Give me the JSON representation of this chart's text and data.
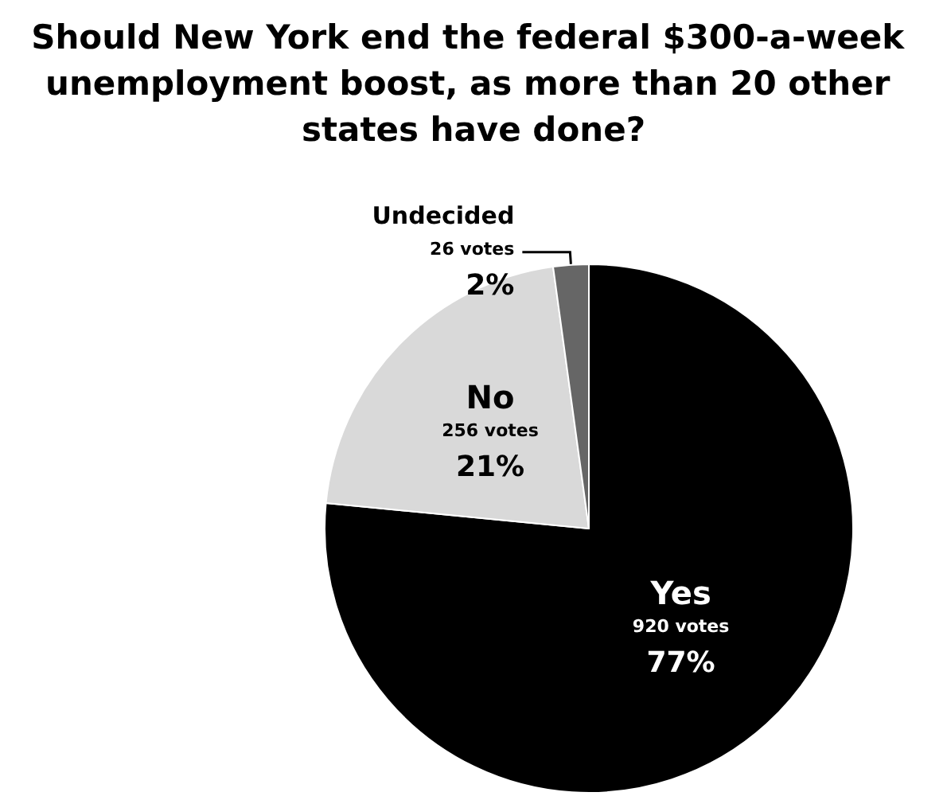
{
  "chart_data": {
    "type": "pie",
    "title": "Should New York end the federal $300-a-week unemployment boost, as more than 20 other states have done?",
    "categories": [
      "Yes",
      "No",
      "Undecided"
    ],
    "values": [
      920,
      256,
      26
    ],
    "value_labels": [
      "920 votes\n77%",
      "256 votes\n21%",
      "26 votes\n2%"
    ],
    "colors": [
      "#000000",
      "#d9d9d9",
      "#666666"
    ]
  }
}
